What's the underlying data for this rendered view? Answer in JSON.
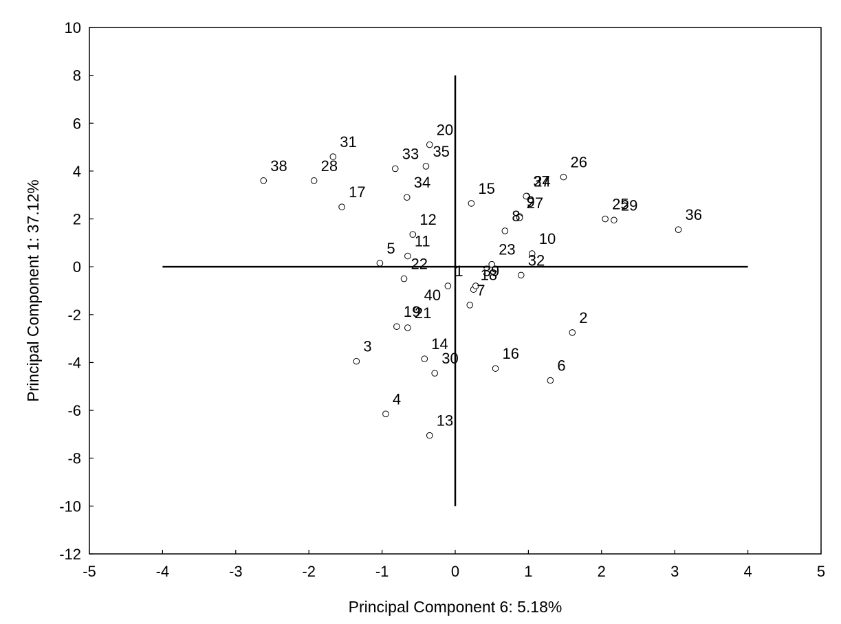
{
  "chart_data": {
    "type": "scatter",
    "title": "",
    "xlabel": "Principal Component 6:  5.18%",
    "ylabel": "Principal Component 1: 37.12%",
    "xlim": [
      -5,
      5
    ],
    "ylim": [
      -12,
      10
    ],
    "xticks": [
      -5,
      -4,
      -3,
      -2,
      -1,
      0,
      1,
      2,
      3,
      4,
      5
    ],
    "yticks": [
      -12,
      -10,
      -8,
      -6,
      -4,
      -2,
      0,
      2,
      4,
      6,
      8,
      10
    ],
    "grid": false,
    "reference_lines": {
      "horizontal": {
        "y": 0,
        "x_from": -4,
        "x_to": 4
      },
      "vertical": {
        "x": 0,
        "y_from": -10,
        "y_to": 8
      }
    },
    "points": [
      {
        "label": "1",
        "x": -0.1,
        "y": -0.8
      },
      {
        "label": "2",
        "x": 1.6,
        "y": -2.75
      },
      {
        "label": "3",
        "x": -1.35,
        "y": -3.95
      },
      {
        "label": "4",
        "x": -0.95,
        "y": -6.15
      },
      {
        "label": "5",
        "x": -1.03,
        "y": 0.15
      },
      {
        "label": "6",
        "x": 1.3,
        "y": -4.75
      },
      {
        "label": "7",
        "x": 0.2,
        "y": -1.6
      },
      {
        "label": "8",
        "x": 0.68,
        "y": 1.5
      },
      {
        "label": "9",
        "x": 0.88,
        "y": 2.1
      },
      {
        "label": "10",
        "x": 1.05,
        "y": 0.55
      },
      {
        "label": "11",
        "x": -0.65,
        "y": 0.45
      },
      {
        "label": "12",
        "x": -0.58,
        "y": 1.35
      },
      {
        "label": "13",
        "x": -0.35,
        "y": -7.05
      },
      {
        "label": "14",
        "x": -0.42,
        "y": -3.85
      },
      {
        "label": "15",
        "x": 0.22,
        "y": 2.65
      },
      {
        "label": "16",
        "x": 0.55,
        "y": -4.25
      },
      {
        "label": "17",
        "x": -1.55,
        "y": 2.5
      },
      {
        "label": "18",
        "x": 0.25,
        "y": -0.95
      },
      {
        "label": "19",
        "x": -0.8,
        "y": -2.5
      },
      {
        "label": "20",
        "x": -0.35,
        "y": 5.1
      },
      {
        "label": "21",
        "x": -0.65,
        "y": -2.55
      },
      {
        "label": "22",
        "x": -0.7,
        "y": -0.5
      },
      {
        "label": "23",
        "x": 0.5,
        "y": 0.1
      },
      {
        "label": "24",
        "x": 0.98,
        "y": 2.95
      },
      {
        "label": "25",
        "x": 2.05,
        "y": 2.0
      },
      {
        "label": "26",
        "x": 1.48,
        "y": 3.75
      },
      {
        "label": "27",
        "x": 0.88,
        "y": 2.05
      },
      {
        "label": "28",
        "x": -1.93,
        "y": 3.6
      },
      {
        "label": "29",
        "x": 2.17,
        "y": 1.95
      },
      {
        "label": "30",
        "x": -0.28,
        "y": -4.45
      },
      {
        "label": "31",
        "x": -1.67,
        "y": 4.6
      },
      {
        "label": "32",
        "x": 0.9,
        "y": -0.35
      },
      {
        "label": "33",
        "x": -0.82,
        "y": 4.1
      },
      {
        "label": "34",
        "x": -0.66,
        "y": 2.9
      },
      {
        "label": "35",
        "x": -0.4,
        "y": 4.2
      },
      {
        "label": "36",
        "x": 3.05,
        "y": 1.55
      },
      {
        "label": "37",
        "x": 0.97,
        "y": 2.95
      },
      {
        "label": "38",
        "x": -2.62,
        "y": 3.6
      },
      {
        "label": "39",
        "x": 0.28,
        "y": -0.8
      },
      {
        "label": "40",
        "x": -0.52,
        "y": -1.8
      }
    ]
  }
}
